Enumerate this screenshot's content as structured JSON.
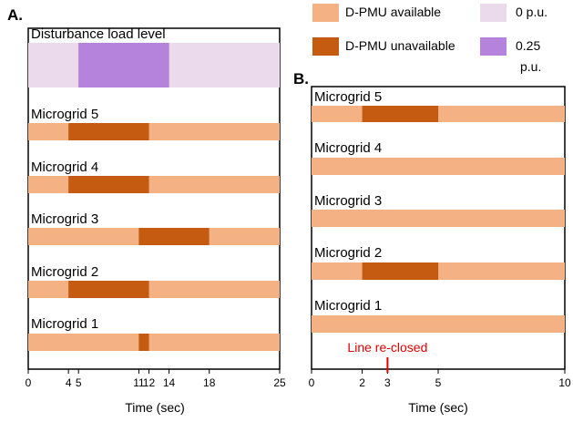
{
  "colors": {
    "available": "#f4b183",
    "unavailable": "#c55a11",
    "disturbance_zero": "#eadaec",
    "disturbance_high": "#b583dc",
    "line_reclosed": "#e00000"
  },
  "legend": [
    {
      "key": "available",
      "label": "D-PMU available"
    },
    {
      "key": "disturbance_zero",
      "label": "0 p.u."
    },
    {
      "key": "unavailable",
      "label": "D-PMU unavailable"
    },
    {
      "key": "disturbance_high",
      "label_lines": [
        "0.25",
        "p.u."
      ]
    }
  ],
  "chart_data": [
    {
      "type": "timeline",
      "panel": "A.",
      "xlabel": "Time (sec)",
      "xlim": [
        0,
        25
      ],
      "xticks": [
        0,
        4,
        5,
        11,
        12,
        14,
        18,
        25
      ],
      "rows": [
        {
          "label": "Disturbance load level",
          "kind": "disturbance",
          "segments": [
            {
              "start": 0,
              "end": 5,
              "state": "disturbance_zero"
            },
            {
              "start": 5,
              "end": 14,
              "state": "disturbance_high"
            },
            {
              "start": 14,
              "end": 25,
              "state": "disturbance_zero"
            }
          ]
        },
        {
          "label": "Microgrid 5",
          "segments": [
            {
              "start": 0,
              "end": 4,
              "state": "available"
            },
            {
              "start": 4,
              "end": 12,
              "state": "unavailable"
            },
            {
              "start": 12,
              "end": 25,
              "state": "available"
            }
          ]
        },
        {
          "label": "Microgrid 4",
          "segments": [
            {
              "start": 0,
              "end": 4,
              "state": "available"
            },
            {
              "start": 4,
              "end": 12,
              "state": "unavailable"
            },
            {
              "start": 12,
              "end": 25,
              "state": "available"
            }
          ]
        },
        {
          "label": "Microgrid 3",
          "segments": [
            {
              "start": 0,
              "end": 11,
              "state": "available"
            },
            {
              "start": 11,
              "end": 18,
              "state": "unavailable"
            },
            {
              "start": 18,
              "end": 25,
              "state": "available"
            }
          ]
        },
        {
          "label": "Microgrid 2",
          "segments": [
            {
              "start": 0,
              "end": 4,
              "state": "available"
            },
            {
              "start": 4,
              "end": 12,
              "state": "unavailable"
            },
            {
              "start": 12,
              "end": 25,
              "state": "available"
            }
          ]
        },
        {
          "label": "Microgrid 1",
          "segments": [
            {
              "start": 0,
              "end": 11,
              "state": "available"
            },
            {
              "start": 11,
              "end": 12,
              "state": "unavailable"
            },
            {
              "start": 12,
              "end": 25,
              "state": "available"
            }
          ]
        }
      ]
    },
    {
      "type": "timeline",
      "panel": "B.",
      "xlabel": "Time (sec)",
      "xlim": [
        0,
        10
      ],
      "xticks": [
        0,
        2,
        3,
        5,
        10
      ],
      "rows": [
        {
          "label": "Microgrid 5",
          "segments": [
            {
              "start": 0,
              "end": 2,
              "state": "available"
            },
            {
              "start": 2,
              "end": 5,
              "state": "unavailable"
            },
            {
              "start": 5,
              "end": 10,
              "state": "available"
            }
          ]
        },
        {
          "label": "Microgrid 4",
          "segments": [
            {
              "start": 0,
              "end": 10,
              "state": "available"
            }
          ]
        },
        {
          "label": "Microgrid 3",
          "segments": [
            {
              "start": 0,
              "end": 10,
              "state": "available"
            }
          ]
        },
        {
          "label": "Microgrid 2",
          "segments": [
            {
              "start": 0,
              "end": 2,
              "state": "available"
            },
            {
              "start": 2,
              "end": 5,
              "state": "unavailable"
            },
            {
              "start": 5,
              "end": 10,
              "state": "available"
            }
          ]
        },
        {
          "label": "Microgrid 1",
          "segments": [
            {
              "start": 0,
              "end": 10,
              "state": "available"
            }
          ]
        }
      ],
      "annotation": {
        "label": "Line re-closed",
        "x": 3
      }
    }
  ]
}
